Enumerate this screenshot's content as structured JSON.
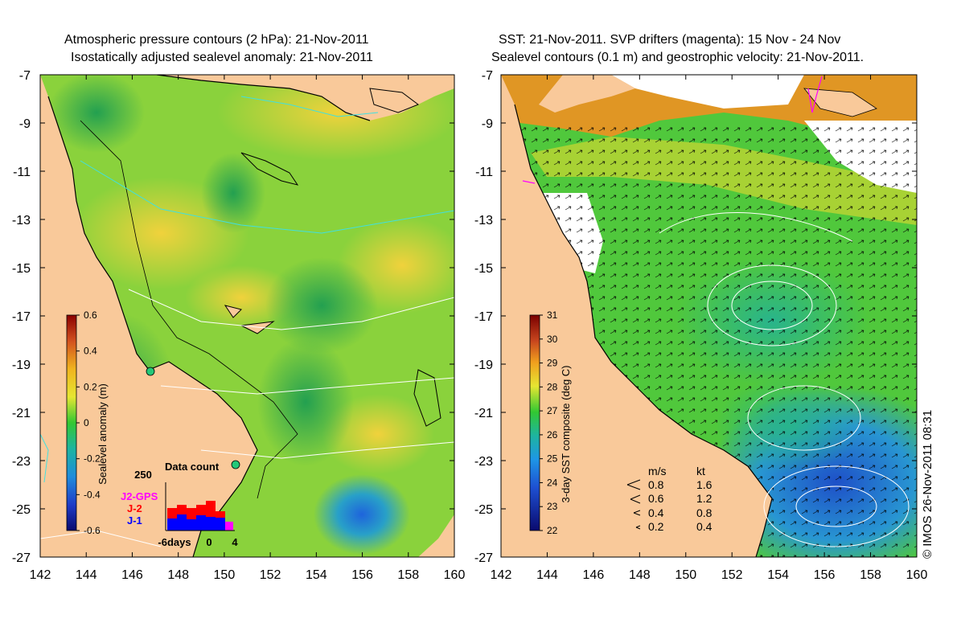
{
  "left_panel": {
    "title_line1": "Atmospheric pressure contours (2 hPa): 21-Nov-2011",
    "title_line2": "Isostatically adjusted sealevel anomaly: 21-Nov-2011",
    "y_ticks": [
      "-7",
      "-9",
      "-11",
      "-13",
      "-15",
      "-17",
      "-19",
      "-21",
      "-23",
      "-25",
      "-27"
    ],
    "x_ticks": [
      "142",
      "144",
      "146",
      "148",
      "150",
      "152",
      "154",
      "156",
      "158",
      "160"
    ],
    "colorbar": {
      "label": "Sealevel anomaly (m)",
      "ticks": [
        "0.6",
        "0.4",
        "0.2",
        "0",
        "-0.2",
        "-0.4",
        "-0.6"
      ]
    },
    "data_count": {
      "title": "Data count",
      "y_tick": "250",
      "x_ticks": [
        "-6days",
        "0",
        "4"
      ],
      "legend": [
        {
          "name": "J2-GPS",
          "color": "#ff00ff"
        },
        {
          "name": "J-2",
          "color": "#ff0000"
        },
        {
          "name": "J-1",
          "color": "#0000ff"
        }
      ]
    }
  },
  "right_panel": {
    "title_line1": "SST: 21-Nov-2011. SVP drifters (magenta): 15 Nov - 24 Nov",
    "title_line2": "Sealevel contours (0.1 m) and geostrophic velocity: 21-Nov-2011.",
    "y_ticks": [
      "-7",
      "-9",
      "-11",
      "-13",
      "-15",
      "-17",
      "-19",
      "-21",
      "-23",
      "-25",
      "-27"
    ],
    "x_ticks": [
      "142",
      "144",
      "146",
      "148",
      "150",
      "152",
      "154",
      "156",
      "158",
      "160"
    ],
    "colorbar": {
      "label": "3-day SST composite (deg C)",
      "ticks": [
        "31",
        "30",
        "29",
        "28",
        "27",
        "26",
        "25",
        "24",
        "23",
        "22"
      ]
    },
    "velocity_key": {
      "header_ms": "m/s",
      "header_kt": "kt",
      "rows": [
        {
          "ms": "0.8",
          "kt": "1.6"
        },
        {
          "ms": "0.6",
          "kt": "1.2"
        },
        {
          "ms": "0.4",
          "kt": "0.8"
        },
        {
          "ms": "0.2",
          "kt": "0.4"
        }
      ]
    }
  },
  "copyright": "© IMOS 26-Nov-2011 08:31",
  "colors": {
    "land": "#f9c99a",
    "sla_green": "#3cc83c",
    "sla_yellow": "#e0e632",
    "sst_orange": "#e0901e",
    "sst_green": "#50c846",
    "sst_blue": "#2a7ad8"
  }
}
